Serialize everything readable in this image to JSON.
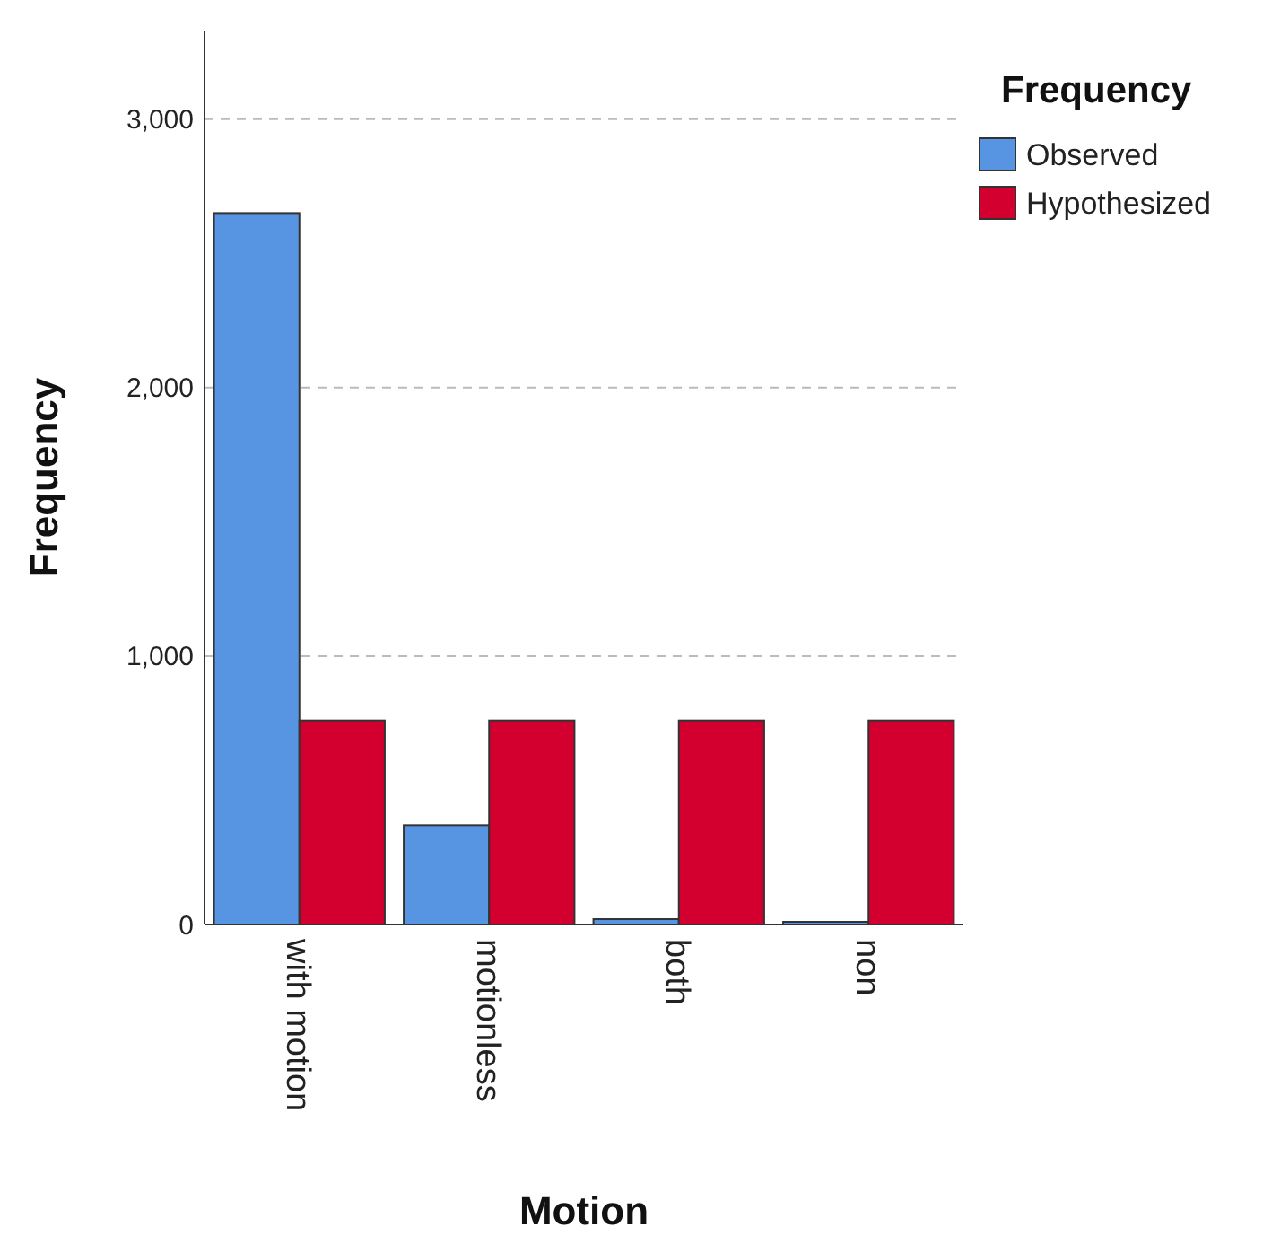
{
  "chart_data": {
    "type": "bar",
    "xlabel": "Motion",
    "ylabel": "Frequency",
    "legend_title": "Frequency",
    "categories": [
      "with motion",
      "motionless",
      "both",
      "non"
    ],
    "series": [
      {
        "name": "Observed",
        "color": "#5795e3",
        "values": [
          2650,
          370,
          20,
          10
        ]
      },
      {
        "name": "Hypothesized",
        "color": "#d3002f",
        "values": [
          760,
          760,
          760,
          760
        ]
      }
    ],
    "ylim": [
      0,
      3330
    ],
    "yticks": [
      {
        "value": 0,
        "label": "0"
      },
      {
        "value": 1000,
        "label": "1,000"
      },
      {
        "value": 2000,
        "label": "2,000"
      },
      {
        "value": 3000,
        "label": "3,000"
      }
    ],
    "grid": "y",
    "legend": "top right"
  }
}
